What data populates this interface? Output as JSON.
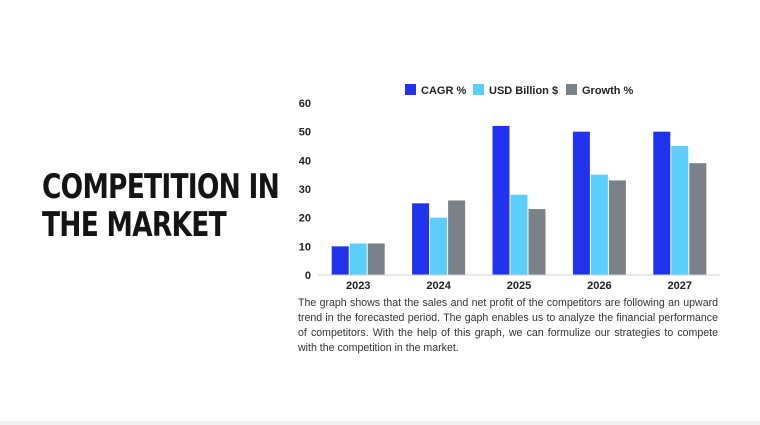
{
  "slide": {
    "title_line1": "COMPETITION IN",
    "title_line2": "THE MARKET",
    "description": "The graph shows that the sales and net profit of the competitors are following an upward trend in the forecasted period. The gaph enables us to analyze the financial performance of competitors. With the help of this graph, we can formulize our strategies to compete with the competition in the market."
  },
  "chart_data": {
    "type": "bar",
    "title": "",
    "categories": [
      "2023",
      "2024",
      "2025",
      "2026",
      "2027"
    ],
    "series": [
      {
        "name": "CAGR %",
        "color": "#2233ee",
        "values": [
          10,
          25,
          52,
          50,
          50
        ]
      },
      {
        "name": "USD Billion $",
        "color": "#5bcffb",
        "values": [
          11,
          20,
          28,
          35,
          45
        ]
      },
      {
        "name": "Growth %",
        "color": "#7b8189",
        "values": [
          11,
          26,
          23,
          33,
          39
        ]
      }
    ],
    "xlabel": "",
    "ylabel": "",
    "ylim": [
      0,
      60
    ],
    "yticks": [
      0,
      10,
      20,
      30,
      40,
      50,
      60
    ],
    "legend_position": "top-center",
    "grid": false
  }
}
